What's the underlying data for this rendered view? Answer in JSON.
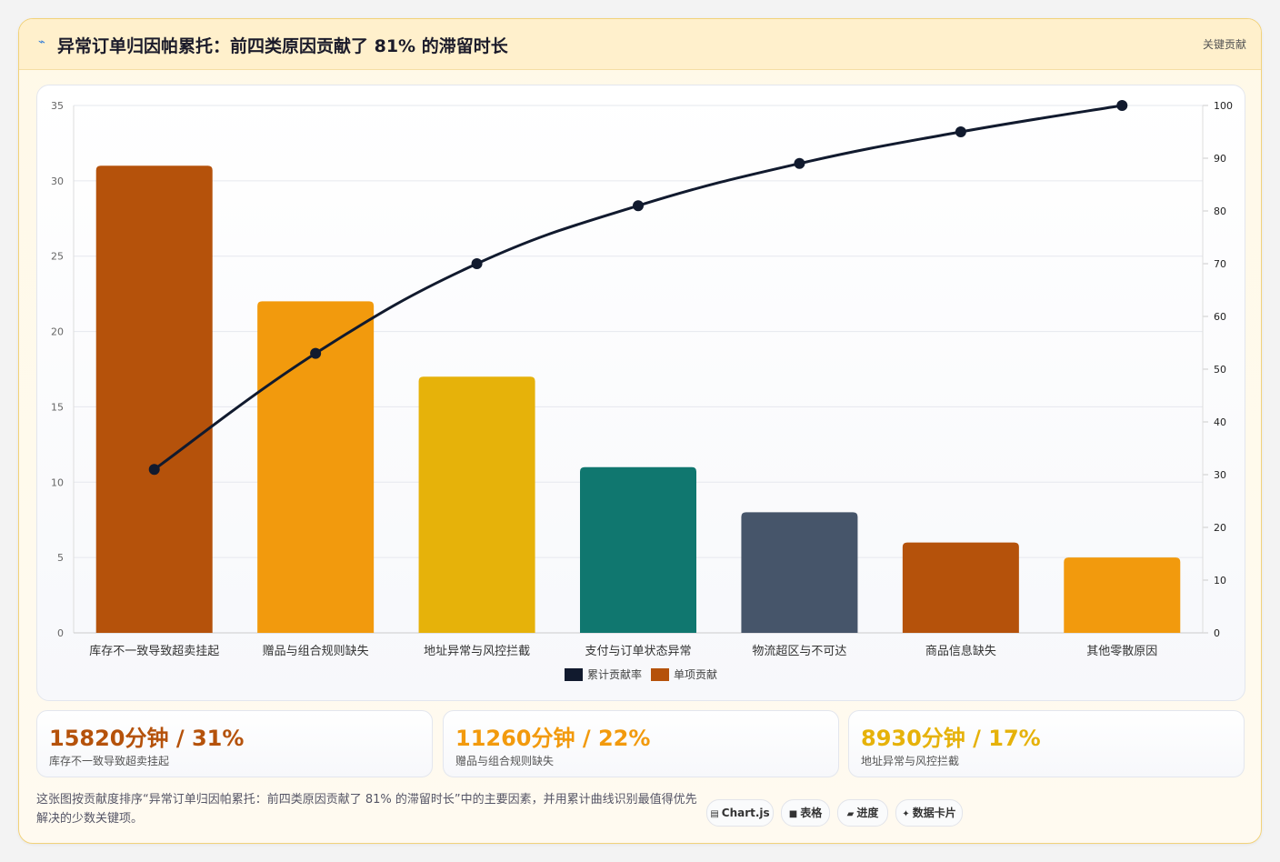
{
  "header": {
    "icon": "sparkline-icon",
    "title": "异常订单归因帕累托：前四类原因贡献了 81% 的滞留时长",
    "tag": "关键贡献"
  },
  "chart_data": {
    "type": "bar",
    "categories": [
      "库存不一致导致超卖挂起",
      "赠品与组合规则缺失",
      "地址异常与风控拦截",
      "支付与订单状态异常",
      "物流超区与不可达",
      "商品信息缺失",
      "其他零散原因"
    ],
    "series": [
      {
        "name": "累计贡献率",
        "type": "line",
        "axis": "right",
        "color": "#111a2e",
        "values": [
          31,
          53,
          70,
          81,
          89,
          95,
          100
        ]
      },
      {
        "name": "单项贡献",
        "type": "bar",
        "axis": "left",
        "color": "#b5520b",
        "values": [
          31,
          22,
          17,
          11,
          8,
          6,
          5
        ]
      }
    ],
    "bar_colors": [
      "#b5520b",
      "#f29a0d",
      "#e6b20a",
      "#10776f",
      "#46556a",
      "#b5520b",
      "#f29a0d"
    ],
    "left_axis": {
      "min": 0,
      "max": 35,
      "ticks": [
        0,
        5,
        10,
        15,
        20,
        25,
        30,
        35
      ]
    },
    "right_axis": {
      "min": 0,
      "max": 100,
      "ticks": [
        0,
        10,
        20,
        30,
        40,
        50,
        60,
        70,
        80,
        90,
        100
      ]
    },
    "grid": true,
    "legend_position": "bottom-center"
  },
  "stats": [
    {
      "value": "15820分钟 / 31%",
      "label": "库存不一致导致超卖挂起",
      "color": "#b5520b"
    },
    {
      "value": "11260分钟 / 22%",
      "label": "赠品与组合规则缺失",
      "color": "#f29a0d"
    },
    {
      "value": "8930分钟 / 17%",
      "label": "地址异常与风控拦截",
      "color": "#e6b20a"
    }
  ],
  "footer": {
    "description": "这张图按贡献度排序“异常订单归因帕累托：前四类原因贡献了 81% 的滞留时长”中的主要因素，并用累计曲线识别最值得优先解决的少数关键项。"
  },
  "chips": [
    {
      "icon": "▤",
      "label": "Chart.js"
    },
    {
      "icon": "■",
      "label": "表格"
    },
    {
      "icon": "▰",
      "label": "进度"
    },
    {
      "icon": "✦",
      "label": "数据卡片"
    }
  ]
}
